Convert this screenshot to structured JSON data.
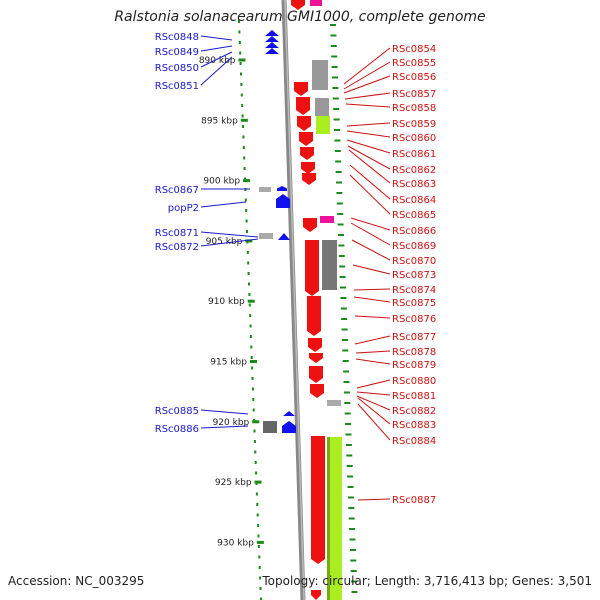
{
  "title": "Ralstonia solanacearum GMI1000, complete genome",
  "footer": {
    "accession": "Accession: NC_003295",
    "topology": "Topology: circular; Length: 3,716,413 bp; Genes: 3,501"
  },
  "colors": {
    "left_label": "#1a1acc",
    "right_label": "#cc1111",
    "tick": "#1a8a1a",
    "gene_forward": "#1111ee",
    "gene_reverse": "#ee1111",
    "backbone": "#888888",
    "feature_grey": "#999999",
    "feature_lime": "#aaee22",
    "feature_pink": "#ee1199"
  },
  "scale_ticks": [
    "890 kbp",
    "895 kbp",
    "900 kbp",
    "905 kbp",
    "910 kbp",
    "915 kbp",
    "920 kbp",
    "925 kbp",
    "930 kbp"
  ],
  "left_labels": [
    "RSc0848",
    "RSc0849",
    "RSc0850",
    "RSc0851",
    "RSc0867",
    "popP2",
    "RSc0871",
    "RSc0872",
    "RSc0885",
    "RSc0886"
  ],
  "right_labels": [
    "RSc0854",
    "RSc0855",
    "RSc0856",
    "RSc0857",
    "RSc0858",
    "RSc0859",
    "RSc0860",
    "RSc0861",
    "RSc0862",
    "RSc0863",
    "RSc0864",
    "RSc0865",
    "RSc0866",
    "RSc0869",
    "RSc0870",
    "RSc0873",
    "RSc0874",
    "RSc0875",
    "RSc0876",
    "RSc0877",
    "RSc0878",
    "RSc0879",
    "RSc0880",
    "RSc0881",
    "RSc0882",
    "RSc0883",
    "RSc0884",
    "RSc0887"
  ]
}
